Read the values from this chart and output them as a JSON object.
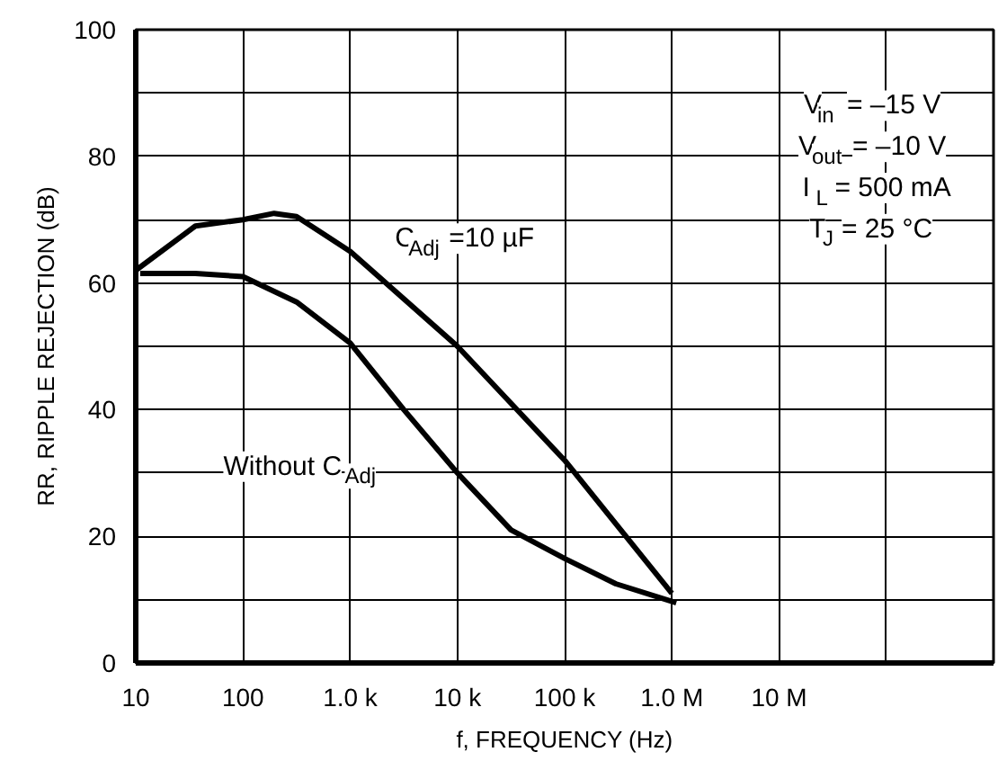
{
  "chart_data": {
    "type": "line",
    "xlabel": "f, FREQUENCY (Hz)",
    "ylabel": "RR, RIPPLE REJECTION (dB)",
    "log": "x",
    "xlim": [
      10,
      1000000000
    ],
    "ylim": [
      0,
      100
    ],
    "xticks": [
      10,
      100,
      {
        "value": 1000,
        "label": "1.0 k"
      },
      {
        "value": 10000,
        "label": "10 k"
      },
      {
        "value": 100000,
        "label": "100 k"
      },
      {
        "value": 1000000,
        "label": "1.0 M"
      },
      {
        "value": 10000000,
        "label": "10 M"
      },
      {
        "value": 100000000,
        "label": null
      }
    ],
    "yticks": [
      0,
      {
        "value": 10,
        "label": null
      },
      20,
      {
        "value": 30,
        "label": null
      },
      40,
      {
        "value": 50,
        "label": null
      },
      60,
      {
        "value": 70,
        "label": null
      },
      80,
      {
        "value": 90,
        "label": null
      },
      100
    ],
    "grid": true,
    "line_style": "solid",
    "series": [
      {
        "name": "C$_{Adj}$ =10 µF",
        "color": "#000000",
        "x": [
          10,
          36,
          100,
          195,
          316,
          1000,
          10000,
          100000,
          1000000
        ],
        "values": [
          62,
          69,
          70,
          71,
          70.5,
          65,
          50,
          32,
          11
        ]
      },
      {
        "name": "Without C$_{Adj}$",
        "color": "#000000",
        "x": [
          11,
          36,
          100,
          316,
          1000,
          3160,
          10000,
          31600,
          100000,
          300000,
          1100000
        ],
        "values": [
          61.5,
          61.5,
          61,
          57,
          50.5,
          40,
          30,
          21,
          16.5,
          12.5,
          9.5
        ]
      }
    ],
    "annotations": [
      "V$_{in}$ = –15 V",
      "V$_{out}$ = –10 V",
      "I$_{L}$ = 500 mA",
      "T$_{J}$ = 25 °C"
    ]
  }
}
